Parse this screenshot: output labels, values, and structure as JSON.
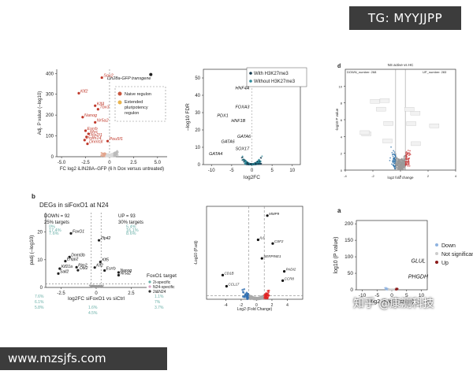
{
  "badges": {
    "tg": "TG: MYYJJPP",
    "url": "www.mzsjfs.com",
    "watermark": "知乎 @康测科技"
  },
  "chart_data": [
    {
      "id": "p1",
      "type": "scatter",
      "xlabel": "FC log2 iLIN28A–GFP (6 h Dox versus untreated)",
      "ylabel": "Adj. P value (–log10)",
      "xlim": [
        -5.5,
        6
      ],
      "ylim": [
        0,
        420
      ],
      "xticks": [
        "-5.0",
        "-2.5",
        "0",
        "2.5",
        "5.0"
      ],
      "yticks": [
        "0",
        "100",
        "200",
        "300",
        "400"
      ],
      "legend": [
        "Naive regulon",
        "Extended pluripotency regulon"
      ],
      "annotation": "Lin28a-GFP transgene",
      "labels": [
        {
          "text": "Sox2",
          "x": -0.8,
          "y": 380
        },
        {
          "text": "Klf2",
          "x": -3.2,
          "y": 305
        },
        {
          "text": "Klf4",
          "x": -1.5,
          "y": 245
        },
        {
          "text": "Tbx3",
          "x": -1.2,
          "y": 228
        },
        {
          "text": "Nanog",
          "x": -2.8,
          "y": 190
        },
        {
          "text": "Nr5a2",
          "x": -1.5,
          "y": 165
        },
        {
          "text": "Esrrb",
          "x": -2.5,
          "y": 125
        },
        {
          "text": "Myc",
          "x": -2.2,
          "y": 110
        },
        {
          "text": "Tfcp2l1",
          "x": -2.4,
          "y": 95
        },
        {
          "text": "Prdm14",
          "x": -2.6,
          "y": 80
        },
        {
          "text": "Dnmt3l",
          "x": -2.3,
          "y": 62
        },
        {
          "text": "Pou5f1",
          "x": -0.2,
          "y": 75
        }
      ],
      "highlight": {
        "x": 4.3,
        "y": 395
      }
    },
    {
      "id": "p2",
      "type": "scatter",
      "xlabel": "log2FC",
      "ylabel": "–log10 FDR",
      "xlim": [
        -12,
        12
      ],
      "ylim": [
        0,
        55
      ],
      "xticks": [
        "-10",
        "-5",
        "0",
        "5",
        "10"
      ],
      "yticks": [
        "0",
        "10",
        "20",
        "30",
        "40",
        "50"
      ],
      "legend": [
        "With H3K27me3",
        "Without H3K27me3"
      ],
      "labels": [
        {
          "text": "HNF4A",
          "x": -4.5,
          "y": 43
        },
        {
          "text": "FOXA3",
          "x": -4.5,
          "y": 32
        },
        {
          "text": "PDX1",
          "x": -9,
          "y": 27
        },
        {
          "text": "HNF1B",
          "x": -5.5,
          "y": 24
        },
        {
          "text": "GATA6",
          "x": -4,
          "y": 15
        },
        {
          "text": "GATA6",
          "x": -8,
          "y": 12
        },
        {
          "text": "SOX17",
          "x": -4.5,
          "y": 8
        },
        {
          "text": "GATA4",
          "x": -11,
          "y": 5
        }
      ]
    },
    {
      "id": "p3",
      "type": "scatter",
      "title": "NS active vs HC",
      "legend": [
        "DOWN_number: 268",
        "UP_number: 283"
      ],
      "xlabel": "log2 fold change",
      "ylabel": "-log10 P value",
      "xlim": [
        -4,
        4
      ],
      "ylim": [
        0,
        12
      ],
      "xticks": [
        "-4",
        "-2",
        "0",
        "2",
        "4"
      ],
      "yticks": [
        "0",
        "2",
        "4",
        "6",
        "8",
        "10"
      ]
    },
    {
      "id": "p4",
      "type": "scatter",
      "title": "DEGs in siFoxO1 at N24",
      "panel_letter": "b",
      "down": "DOWN = 92",
      "down_pct": "25% targets",
      "up": "UP = 93",
      "up_pct": "30% targets",
      "xlabel": "log2FC siFoxO1 vs siCtrl",
      "ylabel": "padj (–log10)",
      "xlim": [
        -3.6,
        3.6
      ],
      "ylim": [
        0,
        27
      ],
      "xticks": [
        "-2.5",
        "0",
        "2.5"
      ],
      "yticks": [
        "0",
        "10",
        "20"
      ],
      "legend_title": "FoxO1 target",
      "legend": [
        "2i-specific",
        "N24-specific",
        "2i&N24"
      ],
      "labels": [
        {
          "text": "FoxO1",
          "x": -1.8,
          "y": 19.5
        },
        {
          "text": "Zfp42",
          "x": 0.2,
          "y": 17
        },
        {
          "text": "Dnmt3b",
          "x": -1.9,
          "y": 11
        },
        {
          "text": "Enpp2",
          "x": -2.2,
          "y": 9.5
        },
        {
          "text": "Pim2",
          "x": -1.4,
          "y": 7.3
        },
        {
          "text": "Otx2",
          "x": -1.3,
          "y": 6.2
        },
        {
          "text": "Klf21a",
          "x": -2.6,
          "y": 6.8
        },
        {
          "text": "Sall2",
          "x": -2.7,
          "y": 5
        },
        {
          "text": "Klf5",
          "x": 0.3,
          "y": 9.2
        },
        {
          "text": "Klf2",
          "x": -0.1,
          "y": 7.2
        },
        {
          "text": "Esrrb",
          "x": 0.6,
          "y": 6.1
        },
        {
          "text": "Nanog",
          "x": 1.6,
          "y": 5.4
        },
        {
          "text": "Nr5a2",
          "x": 1.6,
          "y": 4.4
        }
      ],
      "pct_left": [
        {
          "label": "0%",
          "y": 22
        },
        {
          "label": "17.4%",
          "y": 20.8
        },
        {
          "label": "7.6%",
          "y": 19.6
        }
      ],
      "pct_right": [
        {
          "label": "5.4%",
          "y": 22
        },
        {
          "label": "16.1%",
          "y": 20.8
        },
        {
          "label": "8.6%",
          "y": 19.6
        }
      ],
      "bottom_left": [
        "7.6%",
        "6.1%",
        "5.8%"
      ],
      "bottom_mid": [
        "1.6%",
        "4.5%"
      ],
      "bottom_right": [
        "1.1%",
        "7%",
        "3.7%"
      ]
    },
    {
      "id": "p5",
      "type": "scatter",
      "xlabel": "Log2 (Fold Change)",
      "ylabel": "-Log10 (P.adj)",
      "xlim": [
        -6.5,
        6
      ],
      "ylim": [
        0,
        50
      ],
      "xticks": [
        "-4",
        "-2",
        "0",
        "2",
        "4"
      ],
      "labels": [
        {
          "text": "MMP9",
          "x": 1.4,
          "y": 45
        },
        {
          "text": "IL6",
          "x": 0.2,
          "y": 32
        },
        {
          "text": "CSF2",
          "x": 2.1,
          "y": 30
        },
        {
          "text": "SERPINE1",
          "x": 0.7,
          "y": 22
        },
        {
          "text": "PADI2",
          "x": 3.6,
          "y": 15
        },
        {
          "text": "CCR8",
          "x": 3.4,
          "y": 10
        },
        {
          "text": "CD1B",
          "x": -4.4,
          "y": 13
        },
        {
          "text": "CCL17",
          "x": -3.9,
          "y": 7
        }
      ]
    },
    {
      "id": "p6",
      "type": "scatter",
      "panel_letter": "a",
      "xlabel": "log2 (fold change)",
      "ylabel": "log10 (P value)",
      "xlim": [
        -12,
        12
      ],
      "ylim": [
        0,
        210
      ],
      "xticks": [
        "-10",
        "-5",
        "0",
        "5",
        "10"
      ],
      "yticks": [
        "0",
        "50",
        "100",
        "150",
        "200"
      ],
      "legend": [
        "Down",
        "Not significant",
        "Up"
      ],
      "labels": [
        {
          "text": "GLUL",
          "x": 6,
          "y": 80
        },
        {
          "text": "PHGDH",
          "x": 5,
          "y": 32
        }
      ]
    }
  ]
}
